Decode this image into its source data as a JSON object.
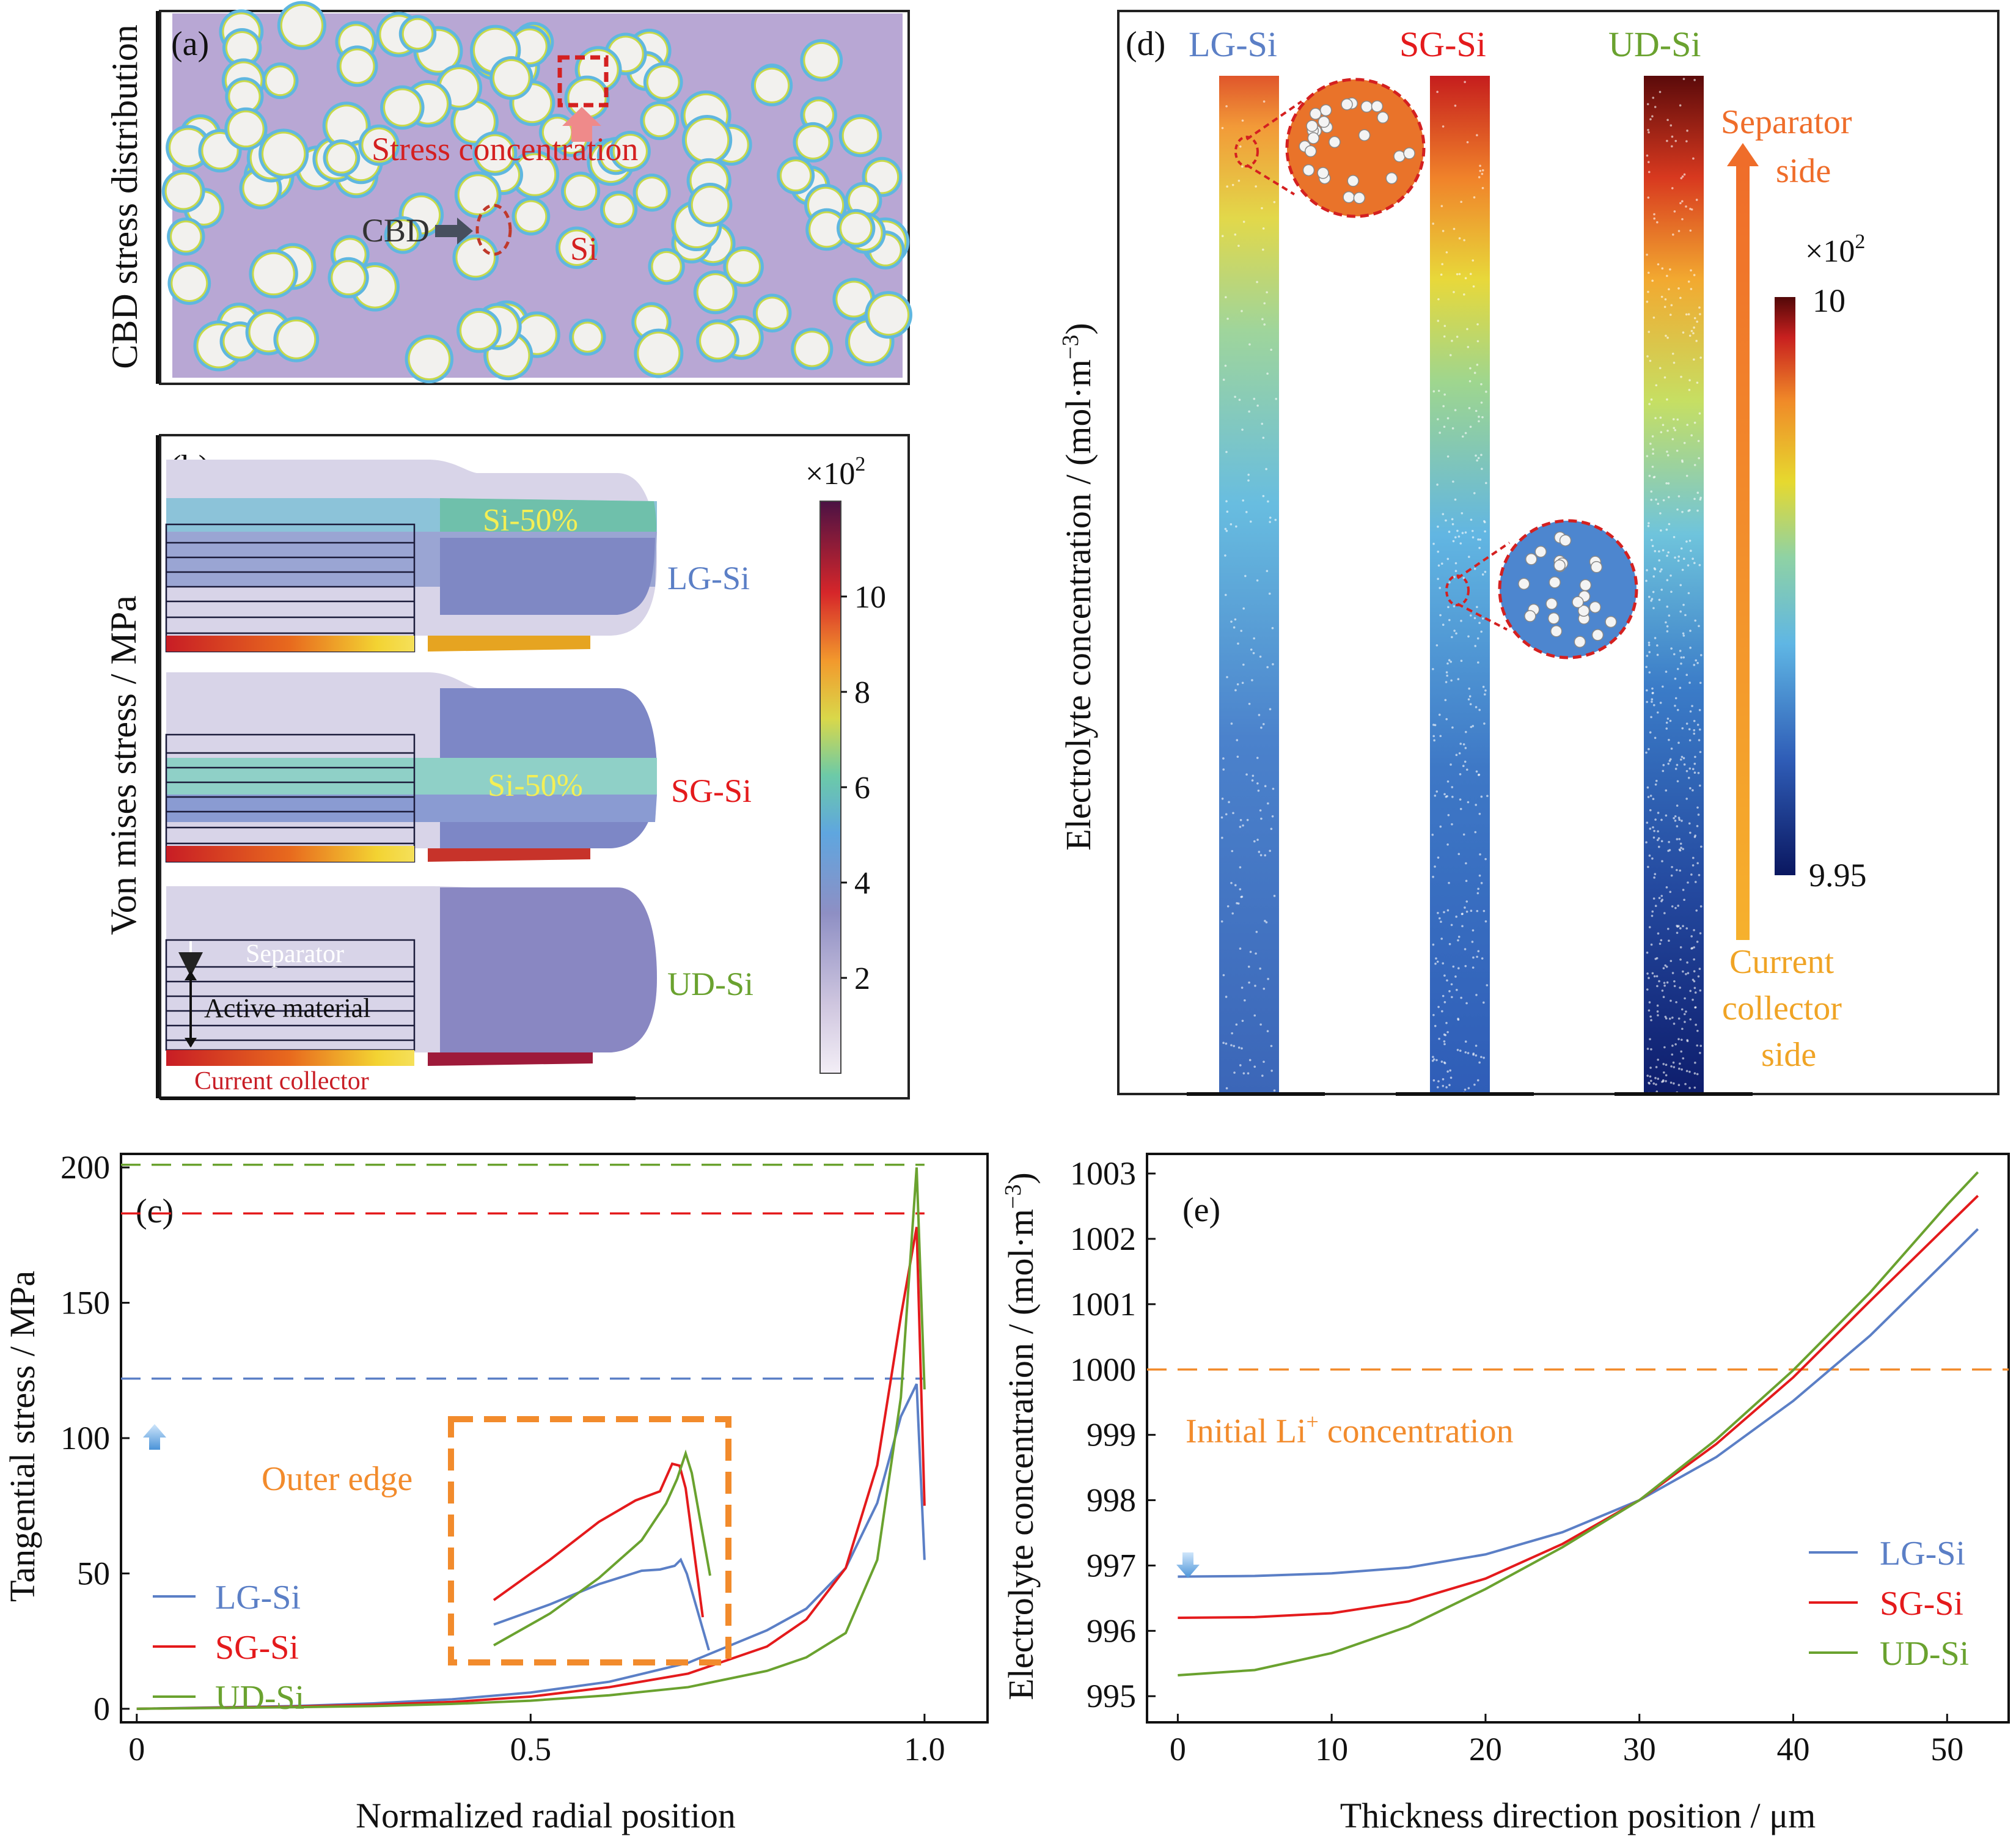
{
  "panel_a": {
    "label": "(a)",
    "ylabel": "CBD stress distribution",
    "stress_label": "Stress concentration",
    "cbd_label": "CBD",
    "si_label": "Si"
  },
  "panel_b": {
    "label": "(b)",
    "ylabel": "Von mises stress / MPa",
    "colorbar_exp": "×10",
    "colorbar_sup": "2",
    "colorbar_ticks": [
      "2",
      "4",
      "6",
      "8",
      "10"
    ],
    "rows": [
      {
        "name": "LG-Si",
        "tag": "Si-50%",
        "color": "#5b7fc6"
      },
      {
        "name": "SG-Si",
        "tag": "Si-50%",
        "color": "#e41a1c"
      },
      {
        "name": "UD-Si",
        "color": "#6aa22f"
      }
    ],
    "separator_label": "Separator",
    "active_label": "Active material",
    "collector_label": "Current collector"
  },
  "panel_c": {
    "label": "(c)",
    "xlabel": "Normalized radial position",
    "ylabel": "Tangential stress / MPa",
    "x_ticks": [
      "0",
      "0.5",
      "1.0"
    ],
    "y_ticks": [
      "0",
      "50",
      "100",
      "150",
      "200"
    ],
    "inset_label": "Outer edge",
    "legend": [
      "LG-Si",
      "SG-Si",
      "UD-Si"
    ]
  },
  "panel_d": {
    "label": "(d)",
    "ylabel": "Electrolyte concentration / (mol·m",
    "ylabel_sup": "−3",
    "ylabel_end": ")",
    "columns": [
      "LG-Si",
      "SG-Si",
      "UD-Si"
    ],
    "column_colors": [
      "#5b7fc6",
      "#e41a1c",
      "#6aa22f"
    ],
    "separator_side": [
      "Separator",
      "side"
    ],
    "collector_side": [
      "Current",
      "collector",
      "side"
    ],
    "colorbar_exp": "×10",
    "colorbar_sup": "2",
    "colorbar_max": "10",
    "colorbar_min": "9.95"
  },
  "panel_e": {
    "label": "(e)",
    "xlabel": "Thickness direction position / μm",
    "ylabel": "Electrolyte concentration / (mol·m",
    "ylabel_sup": "−3",
    "ylabel_end": ")",
    "x_ticks": [
      "0",
      "10",
      "20",
      "30",
      "40",
      "50"
    ],
    "y_ticks": [
      "995",
      "996",
      "997",
      "998",
      "999",
      "1000",
      "1001",
      "1002",
      "1003"
    ],
    "annotation": "Initial Li",
    "annotation_sup": "+",
    "annotation_end": " concentration",
    "legend": [
      "LG-Si",
      "SG-Si",
      "UD-Si"
    ]
  },
  "chart_data": [
    {
      "type": "line",
      "panel": "(c)",
      "xlabel": "Normalized radial position",
      "ylabel": "Tangential stress / MPa",
      "xlim": [
        -0.02,
        1.08
      ],
      "ylim": [
        -5,
        205
      ],
      "reference_lines": [
        {
          "series": "LG-Si",
          "y": 122,
          "style": "dashed"
        },
        {
          "series": "SG-Si",
          "y": 183,
          "style": "dashed"
        },
        {
          "series": "UD-Si",
          "y": 201,
          "style": "dashed"
        }
      ],
      "series": [
        {
          "name": "LG-Si",
          "color": "#5b7fc6",
          "x": [
            0,
            0.1,
            0.2,
            0.3,
            0.4,
            0.5,
            0.6,
            0.7,
            0.8,
            0.85,
            0.9,
            0.94,
            0.97,
            0.99,
            1.0
          ],
          "y": [
            0,
            0.5,
            1,
            2,
            3.5,
            6,
            10,
            17,
            29,
            37,
            52,
            76,
            108,
            120,
            55
          ]
        },
        {
          "name": "SG-Si",
          "color": "#e41a1c",
          "x": [
            0,
            0.1,
            0.2,
            0.3,
            0.4,
            0.5,
            0.6,
            0.7,
            0.8,
            0.85,
            0.9,
            0.94,
            0.97,
            0.99,
            1.0
          ],
          "y": [
            0,
            0.4,
            0.8,
            1.5,
            2.5,
            4.5,
            8,
            13,
            23,
            33,
            52,
            90,
            145,
            178,
            75
          ]
        },
        {
          "name": "UD-Si",
          "color": "#6aa22f",
          "x": [
            0,
            0.1,
            0.2,
            0.3,
            0.4,
            0.5,
            0.6,
            0.7,
            0.8,
            0.85,
            0.9,
            0.94,
            0.97,
            0.99,
            1.0
          ],
          "y": [
            0,
            0.3,
            0.6,
            1,
            1.8,
            3,
            5,
            8,
            14,
            19,
            28,
            55,
            115,
            200,
            118
          ]
        }
      ],
      "legend": "bottom-left"
    },
    {
      "type": "line",
      "panel": "(e)",
      "xlabel": "Thickness direction position / μm",
      "ylabel": "Electrolyte concentration / (mol·m−3)",
      "xlim": [
        -2,
        54
      ],
      "ylim": [
        994.6,
        1003.3
      ],
      "reference_lines": [
        {
          "y": 1000,
          "style": "dashed",
          "label": "Initial Li+ concentration"
        }
      ],
      "series": [
        {
          "name": "LG-Si",
          "color": "#5b7fc6",
          "x": [
            0,
            5,
            10,
            15,
            20,
            25,
            30,
            35,
            40,
            45,
            50,
            52
          ],
          "y": [
            996.83,
            996.84,
            996.88,
            996.97,
            997.17,
            997.51,
            998.0,
            998.66,
            999.52,
            1000.52,
            1001.68,
            1002.15
          ]
        },
        {
          "name": "SG-Si",
          "color": "#e41a1c",
          "x": [
            0,
            5,
            10,
            15,
            20,
            25,
            30,
            35,
            40,
            45,
            50,
            52
          ],
          "y": [
            996.2,
            996.21,
            996.27,
            996.45,
            996.8,
            997.33,
            998.0,
            998.86,
            999.88,
            1001.05,
            1002.2,
            1002.66
          ]
        },
        {
          "name": "UD-Si",
          "color": "#6aa22f",
          "x": [
            0,
            5,
            10,
            15,
            20,
            25,
            30,
            35,
            40,
            45,
            50,
            52
          ],
          "y": [
            995.32,
            995.4,
            995.66,
            996.07,
            996.64,
            997.28,
            998.0,
            998.93,
            999.99,
            1001.18,
            1002.52,
            1003.02
          ]
        }
      ],
      "legend": "bottom-right"
    }
  ]
}
